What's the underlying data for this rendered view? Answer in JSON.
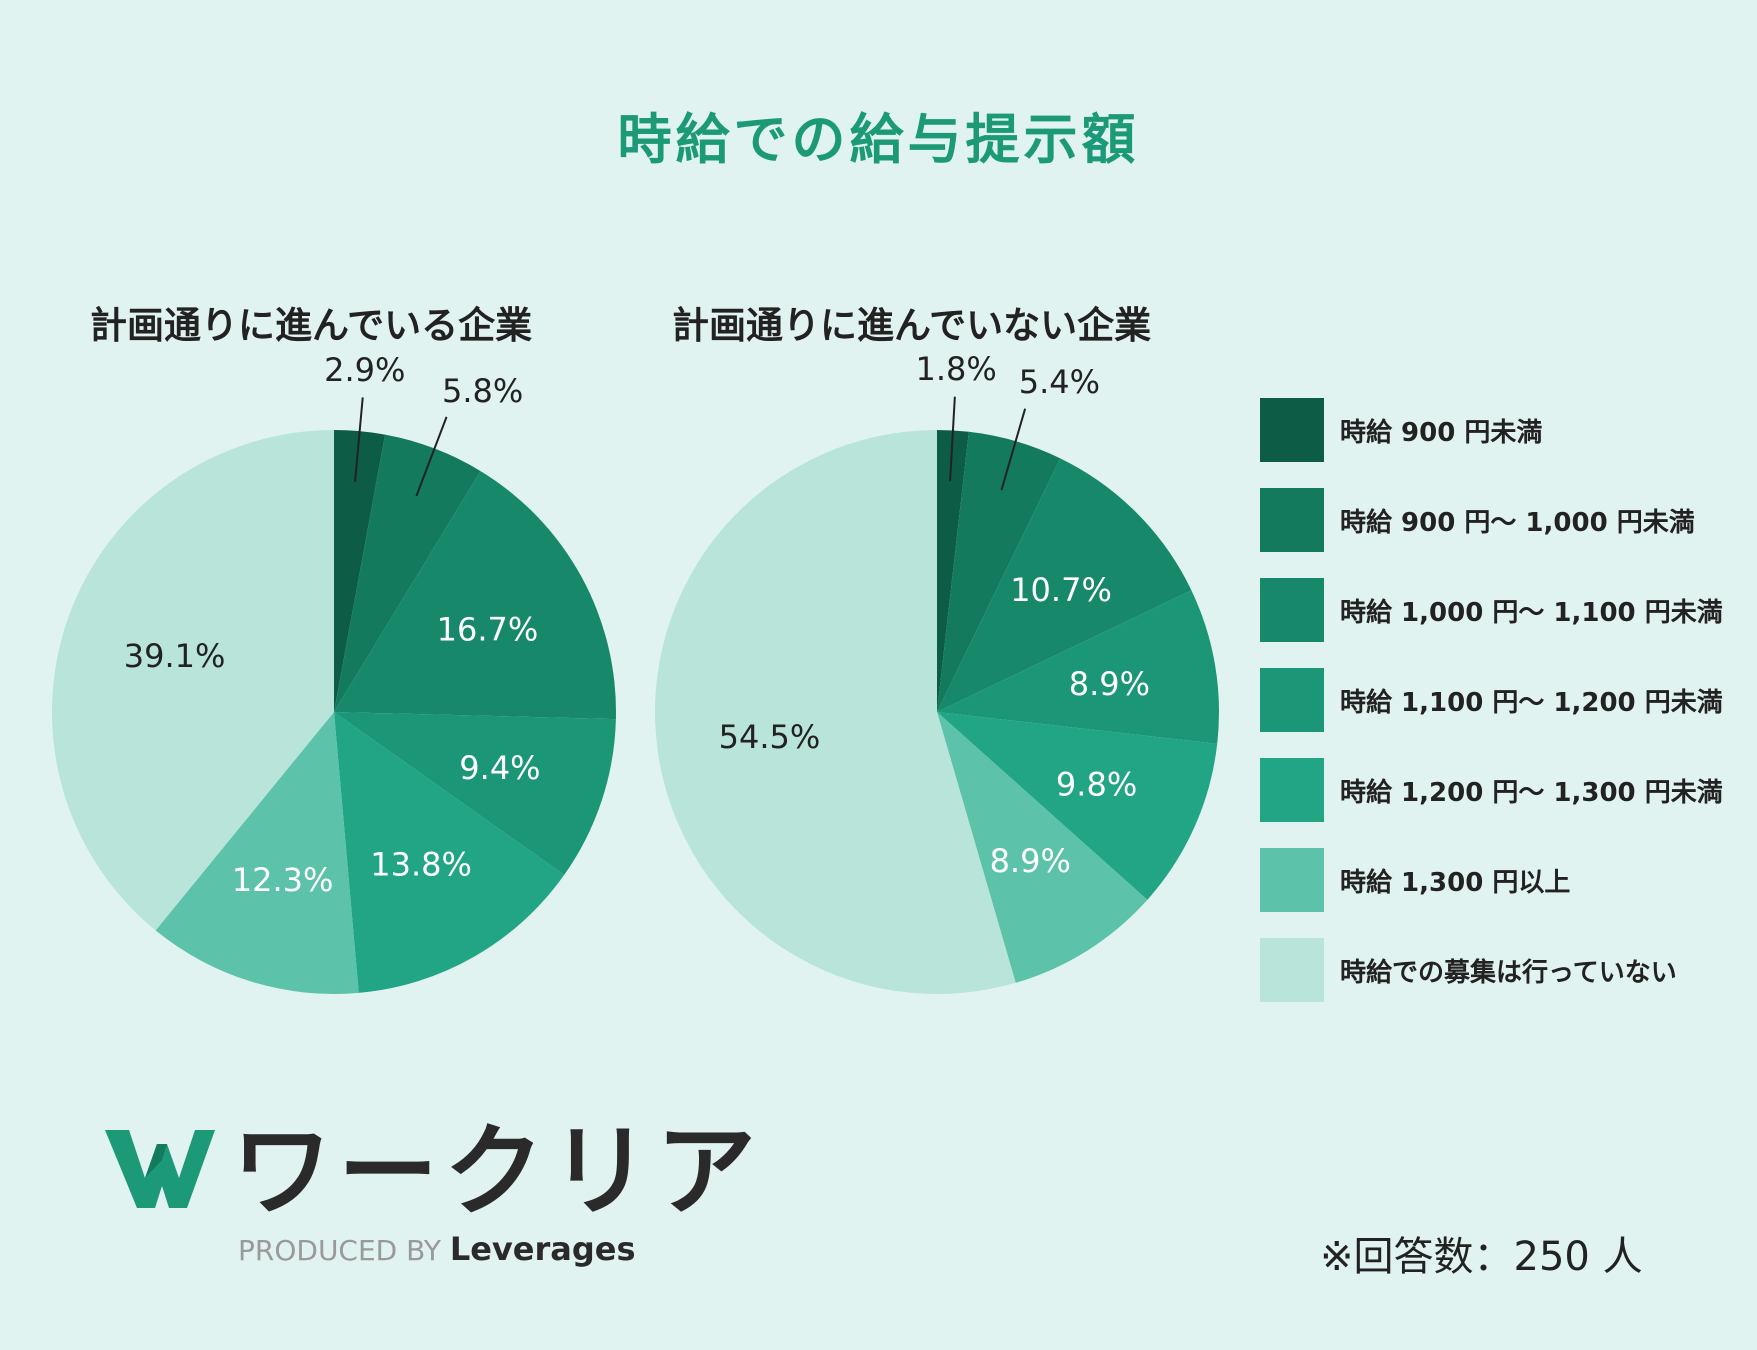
{
  "title": "時給での給与提示額",
  "chart_data": [
    {
      "type": "pie",
      "title": "計画通りに進んでいる企業",
      "categories": [
        "時給 900 円未満",
        "時給 900 円～ 1,000 円未満",
        "時給 1,000 円～ 1,100 円未満",
        "時給 1,100 円～ 1,200 円未満",
        "時給 1,200 円～ 1,300 円未満",
        "時給 1,300 円以上",
        "時給での募集は行っていない"
      ],
      "values": [
        2.9,
        5.8,
        16.7,
        9.4,
        13.8,
        12.3,
        39.1
      ],
      "labels": [
        "2.9%",
        "5.8%",
        "16.7%",
        "9.4%",
        "13.8%",
        "12.3%",
        "39.1%"
      ]
    },
    {
      "type": "pie",
      "title": "計画通りに進んでいない企業",
      "categories": [
        "時給 900 円未満",
        "時給 900 円～ 1,000 円未満",
        "時給 1,000 円～ 1,100 円未満",
        "時給 1,100 円～ 1,200 円未満",
        "時給 1,200 円～ 1,300 円未満",
        "時給 1,300 円以上",
        "時給での募集は行っていない"
      ],
      "values": [
        1.8,
        5.4,
        10.7,
        8.9,
        9.8,
        8.9,
        54.5
      ],
      "labels": [
        "1.8%",
        "5.4%",
        "10.7%",
        "8.9%",
        "9.8%",
        "8.9%",
        "54.5%"
      ]
    }
  ],
  "legend": [
    {
      "label": "時給 900 円未満",
      "color": "#0d5c46"
    },
    {
      "label": "時給 900 円～ 1,000 円未満",
      "color": "#137a5e"
    },
    {
      "label": "時給 1,000 円～ 1,100 円未満",
      "color": "#17896a"
    },
    {
      "label": "時給 1,100 円～ 1,200 円未満",
      "color": "#1b9676"
    },
    {
      "label": "時給 1,200 円～ 1,300 円未満",
      "color": "#22a584"
    },
    {
      "label": "時給 1,300 円以上",
      "color": "#5cc2aa"
    },
    {
      "label": "時給での募集は行っていない",
      "color": "#b8e4da"
    }
  ],
  "logo": {
    "name": "ワークリア",
    "produced_by": "PRODUCED BY",
    "brand": "Leverages"
  },
  "note": "※回答数：250 人"
}
